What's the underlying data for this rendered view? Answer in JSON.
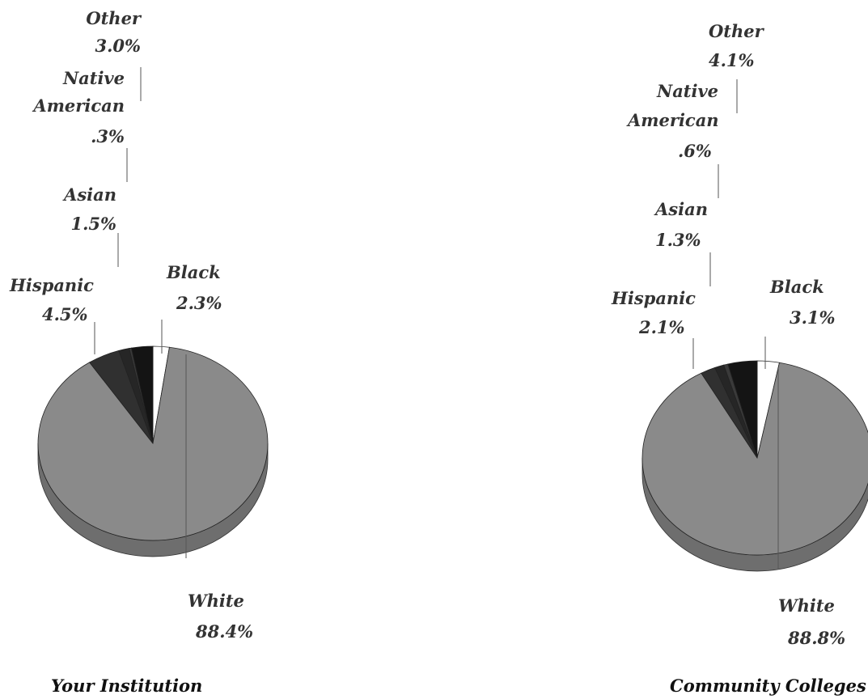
{
  "colors": {
    "White": "#8a8a8a",
    "Black": "#ffffff",
    "Other": "#141414",
    "Native American": "#3a3a3a",
    "Asian": "#262626",
    "Hispanic": "#303030",
    "side": "#6e6e6e"
  },
  "chart_data": [
    {
      "type": "pie",
      "title": "Your Institution",
      "slices": [
        {
          "label": "White",
          "value": 88.4,
          "value_label": "88.4%"
        },
        {
          "label": "Hispanic",
          "value": 4.5,
          "value_label": "4.5%"
        },
        {
          "label": "Asian",
          "value": 1.5,
          "value_label": "1.5%"
        },
        {
          "label": "Native American",
          "value": 0.3,
          "value_label": ".3%"
        },
        {
          "label": "Other",
          "value": 3.0,
          "value_label": "3.0%"
        },
        {
          "label": "Black",
          "value": 2.3,
          "value_label": "2.3%"
        }
      ]
    },
    {
      "type": "pie",
      "title": "Community Colleges",
      "slices": [
        {
          "label": "White",
          "value": 88.8,
          "value_label": "88.8%"
        },
        {
          "label": "Hispanic",
          "value": 2.1,
          "value_label": "2.1%"
        },
        {
          "label": "Asian",
          "value": 1.3,
          "value_label": "1.3%"
        },
        {
          "label": "Native American",
          "value": 0.6,
          "value_label": ".6%"
        },
        {
          "label": "Other",
          "value": 4.1,
          "value_label": "4.1%"
        },
        {
          "label": "Black",
          "value": 3.1,
          "value_label": "3.1%"
        }
      ]
    }
  ]
}
